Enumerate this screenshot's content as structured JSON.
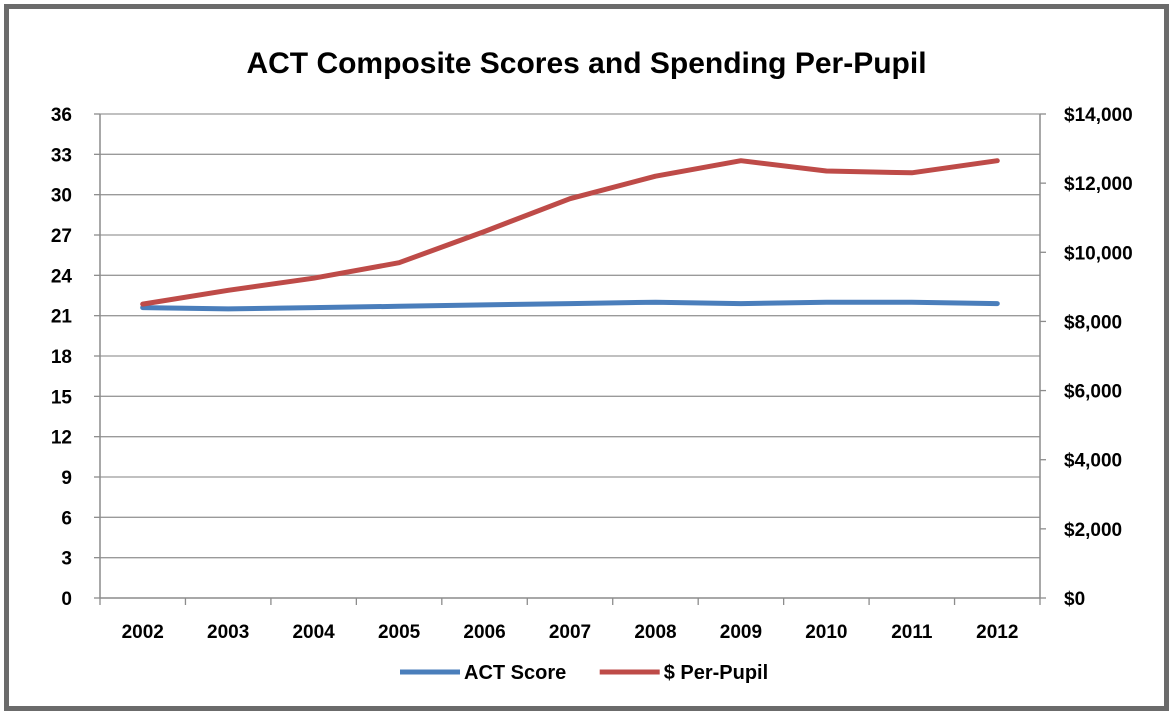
{
  "chart_data": {
    "type": "line",
    "title": "ACT Composite Scores and Spending Per-Pupil",
    "categories": [
      "2002",
      "2003",
      "2004",
      "2005",
      "2006",
      "2007",
      "2008",
      "2009",
      "2010",
      "2011",
      "2012"
    ],
    "y_left": {
      "min": 0,
      "max": 36,
      "step": 3,
      "ticks": [
        "0",
        "3",
        "6",
        "9",
        "12",
        "15",
        "18",
        "21",
        "24",
        "27",
        "30",
        "33",
        "36"
      ]
    },
    "y_right": {
      "min": 0,
      "max": 14000,
      "step": 2000,
      "ticks": [
        "$0",
        "$2,000",
        "$4,000",
        "$6,000",
        "$8,000",
        "$10,000",
        "$12,000",
        "$14,000"
      ]
    },
    "grid": true,
    "legend_position": "bottom",
    "series": [
      {
        "name": "ACT Score",
        "axis": "left",
        "color": "#4a7ebb",
        "values": [
          21.6,
          21.5,
          21.6,
          21.7,
          21.8,
          21.9,
          22.0,
          21.9,
          22.0,
          22.0,
          21.9
        ]
      },
      {
        "name": "$ Per-Pupil",
        "axis": "right",
        "color": "#be4b48",
        "values": [
          8500,
          8900,
          9250,
          9700,
          10600,
          11550,
          12200,
          12650,
          12350,
          12300,
          12650
        ]
      }
    ]
  }
}
